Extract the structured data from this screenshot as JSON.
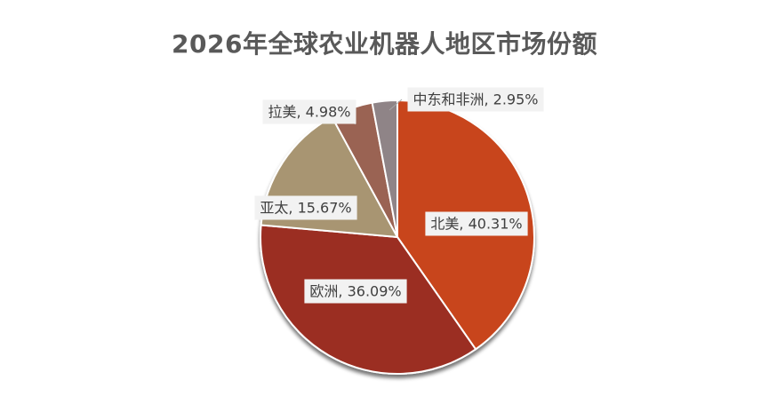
{
  "chart_data": {
    "type": "pie",
    "title": "2026年全球农业机器人地区市场份额",
    "slices": [
      {
        "name": "北美",
        "value": 40.31,
        "label": "北美, 40.31%",
        "color": "#c8441a"
      },
      {
        "name": "欧洲",
        "value": 36.09,
        "label": "欧洲, 36.09%",
        "color": "#9b2f22"
      },
      {
        "name": "亚太",
        "value": 15.67,
        "label": "亚太, 15.67%",
        "color": "#a89572"
      },
      {
        "name": "拉美",
        "value": 4.98,
        "label": "拉美, 4.98%",
        "color": "#9a6453"
      },
      {
        "name": "中东和非洲",
        "value": 2.95,
        "label": "中东和非洲, 2.95%",
        "color": "#8f8487"
      }
    ],
    "start_angle_deg": 0,
    "direction": "clockwise",
    "legend": "none",
    "data_labels": "category-and-percent"
  }
}
